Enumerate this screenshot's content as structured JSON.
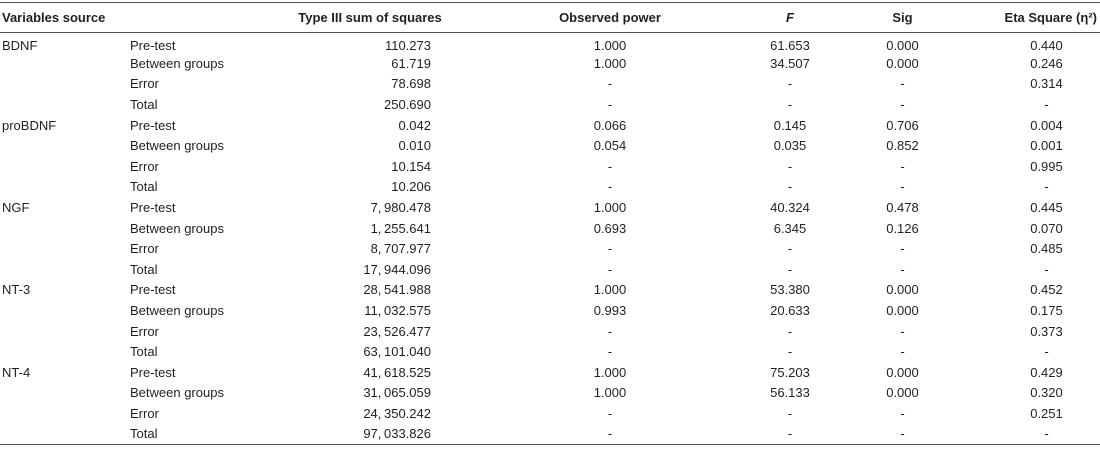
{
  "table": {
    "header": [
      "Variables source",
      "",
      "Type III sum of squares",
      "Observed power",
      "F",
      "Sig",
      "Eta Square (η²)"
    ],
    "groups": [
      {
        "name": "BDNF",
        "rows": [
          [
            "Pre-test",
            "110.273",
            "1.000",
            "61.653",
            "0.000",
            "0.440"
          ],
          [
            "Between groups",
            "61.719",
            "1.000",
            "34.507",
            "0.000",
            "0.246"
          ],
          [
            "Error",
            "78.698",
            "-",
            "-",
            "-",
            "0.314"
          ],
          [
            "Total",
            "250.690",
            "-",
            "-",
            "-",
            "-"
          ]
        ]
      },
      {
        "name": "proBDNF",
        "rows": [
          [
            "Pre-test",
            "0.042",
            "0.066",
            "0.145",
            "0.706",
            "0.004"
          ],
          [
            "Between groups",
            "0.010",
            "0.054",
            "0.035",
            "0.852",
            "0.001"
          ],
          [
            "Error",
            "10.154",
            "-",
            "-",
            "-",
            "0.995"
          ],
          [
            "Total",
            "10.206",
            "-",
            "-",
            "-",
            "-"
          ]
        ]
      },
      {
        "name": "NGF",
        "rows": [
          [
            "Pre-test",
            "7, 980.478",
            "1.000",
            "40.324",
            "0.478",
            "0.445"
          ],
          [
            "Between groups",
            "1, 255.641",
            "0.693",
            "6.345",
            "0.126",
            "0.070"
          ],
          [
            "Error",
            "8, 707.977",
            "-",
            "-",
            "-",
            "0.485"
          ],
          [
            "Total",
            "17, 944.096",
            "-",
            "-",
            "-",
            "-"
          ]
        ]
      },
      {
        "name": "NT-3",
        "rows": [
          [
            "Pre-test",
            "28, 541.988",
            "1.000",
            "53.380",
            "0.000",
            "0.452"
          ],
          [
            "Between groups",
            "11, 032.575",
            "0.993",
            "20.633",
            "0.000",
            "0.175"
          ],
          [
            "Error",
            "23, 526.477",
            "-",
            "-",
            "-",
            "0.373"
          ],
          [
            "Total",
            "63, 101.040",
            "-",
            "-",
            "-",
            "-"
          ]
        ]
      },
      {
        "name": "NT-4",
        "rows": [
          [
            "Pre-test",
            "41, 618.525",
            "1.000",
            "75.203",
            "0.000",
            "0.429"
          ],
          [
            "Between groups",
            "31, 065.059",
            "1.000",
            "56.133",
            "0.000",
            "0.320"
          ],
          [
            "Error",
            "24, 350.242",
            "-",
            "-",
            "-",
            "0.251"
          ],
          [
            "Total",
            "97, 033.826",
            "-",
            "-",
            "-",
            "-"
          ]
        ]
      }
    ]
  }
}
